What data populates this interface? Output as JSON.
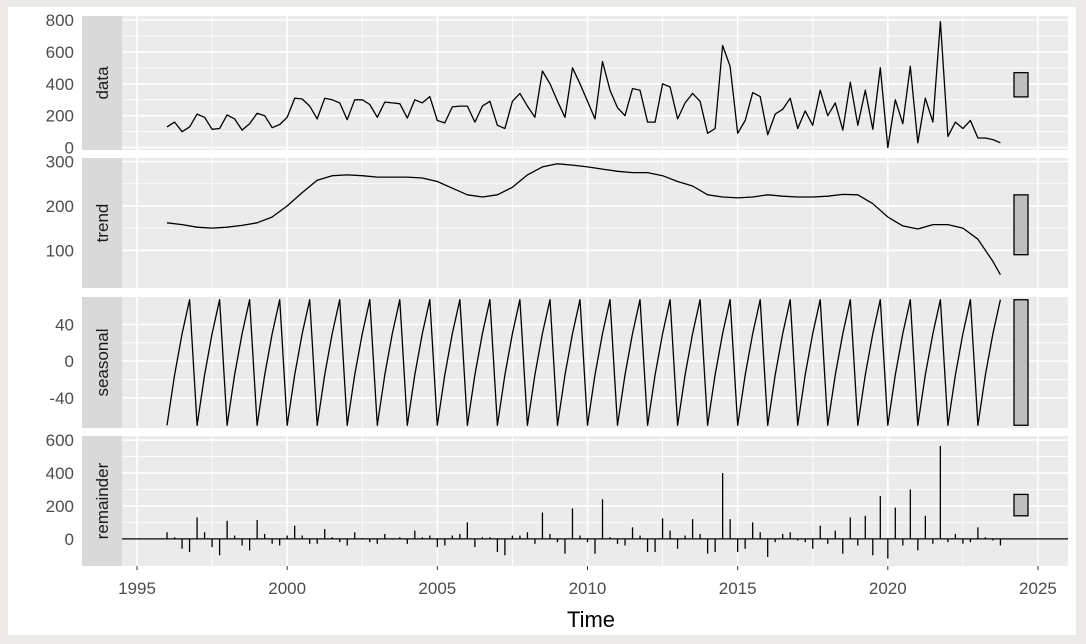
{
  "chart_data": {
    "type": "line",
    "xlabel": "Time",
    "xlim": [
      1994.5,
      2026.0
    ],
    "x_ticks": [
      "1995",
      "2000",
      "2005",
      "2010",
      "2015",
      "2020",
      "2025"
    ],
    "colors": {
      "panel_bg": "#ebebeb",
      "strip_bg": "#d9d9d9",
      "grid": "#ffffff",
      "line": "#000000",
      "bar_fill": "#bebebe"
    },
    "panels": [
      {
        "name": "data",
        "ylim": [
          -15,
          825
        ],
        "y_ticks": [
          "0",
          "200",
          "400",
          "600",
          "800"
        ],
        "y_tick_values": [
          0,
          200,
          400,
          600,
          800
        ],
        "range_bar": [
          318,
          470
        ],
        "x": [
          1996.0,
          1996.25,
          1996.5,
          1996.75,
          1997.0,
          1997.25,
          1997.5,
          1997.75,
          1998.0,
          1998.25,
          1998.5,
          1998.75,
          1999.0,
          1999.25,
          1999.5,
          1999.75,
          2000.0,
          2000.25,
          2000.5,
          2000.75,
          2001.0,
          2001.25,
          2001.5,
          2001.75,
          2002.0,
          2002.25,
          2002.5,
          2002.75,
          2003.0,
          2003.25,
          2003.5,
          2003.75,
          2004.0,
          2004.25,
          2004.5,
          2004.75,
          2005.0,
          2005.25,
          2005.5,
          2005.75,
          2006.0,
          2006.25,
          2006.5,
          2006.75,
          2007.0,
          2007.25,
          2007.5,
          2007.75,
          2008.0,
          2008.25,
          2008.5,
          2008.75,
          2009.0,
          2009.25,
          2009.5,
          2009.75,
          2010.0,
          2010.25,
          2010.5,
          2010.75,
          2011.0,
          2011.25,
          2011.5,
          2011.75,
          2012.0,
          2012.25,
          2012.5,
          2012.75,
          2013.0,
          2013.25,
          2013.5,
          2013.75,
          2014.0,
          2014.25,
          2014.5,
          2014.75,
          2015.0,
          2015.25,
          2015.5,
          2015.75,
          2016.0,
          2016.25,
          2016.5,
          2016.75,
          2017.0,
          2017.25,
          2017.5,
          2017.75,
          2018.0,
          2018.25,
          2018.5,
          2018.75,
          2019.0,
          2019.25,
          2019.5,
          2019.75,
          2020.0,
          2020.25,
          2020.5,
          2020.75,
          2021.0,
          2021.25,
          2021.5,
          2021.75,
          2022.0,
          2022.25,
          2022.5,
          2022.75,
          2023.0,
          2023.25,
          2023.5,
          2023.75
        ],
        "values": [
          130,
          160,
          100,
          130,
          210,
          190,
          115,
          120,
          205,
          180,
          110,
          150,
          215,
          200,
          125,
          145,
          190,
          310,
          305,
          260,
          180,
          310,
          300,
          280,
          175,
          300,
          300,
          270,
          190,
          285,
          280,
          275,
          185,
          300,
          280,
          320,
          170,
          155,
          255,
          260,
          260,
          160,
          260,
          290,
          140,
          120,
          290,
          340,
          260,
          190,
          480,
          400,
          290,
          190,
          500,
          400,
          290,
          180,
          540,
          360,
          250,
          200,
          370,
          360,
          160,
          160,
          400,
          380,
          180,
          280,
          340,
          290,
          90,
          120,
          640,
          510,
          90,
          170,
          345,
          320,
          80,
          210,
          240,
          310,
          120,
          230,
          140,
          360,
          200,
          280,
          110,
          410,
          140,
          360,
          115,
          500,
          0,
          300,
          150,
          510,
          30,
          310,
          160,
          790,
          70,
          160,
          120,
          170,
          60,
          60,
          50,
          30
        ]
      },
      {
        "name": "trend",
        "ylim": [
          15,
          308
        ],
        "y_ticks": [
          "100",
          "200",
          "300"
        ],
        "y_tick_values": [
          100,
          200,
          300
        ],
        "range_bar": [
          90,
          225
        ],
        "x": [
          1996.0,
          1996.5,
          1997.0,
          1997.5,
          1998.0,
          1998.5,
          1999.0,
          1999.5,
          2000.0,
          2000.5,
          2001.0,
          2001.5,
          2002.0,
          2002.5,
          2003.0,
          2003.5,
          2004.0,
          2004.5,
          2005.0,
          2005.5,
          2006.0,
          2006.5,
          2007.0,
          2007.5,
          2008.0,
          2008.5,
          2009.0,
          2009.5,
          2010.0,
          2010.5,
          2011.0,
          2011.5,
          2012.0,
          2012.5,
          2013.0,
          2013.5,
          2014.0,
          2014.5,
          2015.0,
          2015.5,
          2016.0,
          2016.5,
          2017.0,
          2017.5,
          2018.0,
          2018.5,
          2019.0,
          2019.5,
          2020.0,
          2020.5,
          2021.0,
          2021.5,
          2022.0,
          2022.5,
          2023.0,
          2023.5,
          2023.75
        ],
        "values": [
          162,
          158,
          152,
          150,
          152,
          156,
          162,
          175,
          200,
          230,
          258,
          268,
          270,
          268,
          265,
          265,
          265,
          263,
          255,
          240,
          225,
          220,
          225,
          242,
          270,
          288,
          295,
          292,
          288,
          283,
          278,
          275,
          275,
          268,
          255,
          245,
          225,
          220,
          218,
          220,
          225,
          222,
          220,
          220,
          222,
          226,
          225,
          205,
          175,
          155,
          148,
          158,
          158,
          150,
          125,
          75,
          45
        ]
      },
      {
        "name": "seasonal",
        "ylim": [
          -73,
          70
        ],
        "y_ticks": [
          "40",
          "0",
          "-40"
        ],
        "y_tick_values": [
          40,
          0,
          -40
        ],
        "range_bar": [
          -70,
          67
        ],
        "pattern": [
          -70,
          -15,
          30,
          67
        ],
        "start_year": 1996.0,
        "end_year": 2023.75,
        "step": 0.25
      },
      {
        "name": "remainder",
        "ylim": [
          -165,
          625
        ],
        "y_ticks": [
          "0",
          "200",
          "400",
          "600"
        ],
        "y_tick_values": [
          0,
          200,
          400,
          600
        ],
        "range_bar": [
          140,
          270
        ],
        "x": [
          1996.0,
          1996.25,
          1996.5,
          1996.75,
          1997.0,
          1997.25,
          1997.5,
          1997.75,
          1998.0,
          1998.25,
          1998.5,
          1998.75,
          1999.0,
          1999.25,
          1999.5,
          1999.75,
          2000.0,
          2000.25,
          2000.5,
          2000.75,
          2001.0,
          2001.25,
          2001.5,
          2001.75,
          2002.0,
          2002.25,
          2002.5,
          2002.75,
          2003.0,
          2003.25,
          2003.5,
          2003.75,
          2004.0,
          2004.25,
          2004.5,
          2004.75,
          2005.0,
          2005.25,
          2005.5,
          2005.75,
          2006.0,
          2006.25,
          2006.5,
          2006.75,
          2007.0,
          2007.25,
          2007.5,
          2007.75,
          2008.0,
          2008.25,
          2008.5,
          2008.75,
          2009.0,
          2009.25,
          2009.5,
          2009.75,
          2010.0,
          2010.25,
          2010.5,
          2010.75,
          2011.0,
          2011.25,
          2011.5,
          2011.75,
          2012.0,
          2012.25,
          2012.5,
          2012.75,
          2013.0,
          2013.25,
          2013.5,
          2013.75,
          2014.0,
          2014.25,
          2014.5,
          2014.75,
          2015.0,
          2015.25,
          2015.5,
          2015.75,
          2016.0,
          2016.25,
          2016.5,
          2016.75,
          2017.0,
          2017.25,
          2017.5,
          2017.75,
          2018.0,
          2018.25,
          2018.5,
          2018.75,
          2019.0,
          2019.25,
          2019.5,
          2019.75,
          2020.0,
          2020.25,
          2020.5,
          2020.75,
          2021.0,
          2021.25,
          2021.5,
          2021.75,
          2022.0,
          2022.25,
          2022.5,
          2022.75,
          2023.0,
          2023.25,
          2023.5,
          2023.75
        ],
        "values": [
          40,
          10,
          -60,
          -80,
          130,
          40,
          -50,
          -100,
          110,
          20,
          -40,
          -70,
          115,
          30,
          -30,
          -40,
          20,
          80,
          20,
          -30,
          -30,
          60,
          10,
          -20,
          -40,
          40,
          5,
          -20,
          -30,
          30,
          -5,
          10,
          -30,
          50,
          10,
          20,
          -50,
          -40,
          20,
          30,
          100,
          -50,
          10,
          10,
          -80,
          -100,
          20,
          20,
          40,
          -30,
          160,
          30,
          -20,
          -90,
          185,
          20,
          -20,
          -90,
          240,
          10,
          -30,
          -40,
          70,
          20,
          -80,
          -80,
          125,
          50,
          -60,
          20,
          120,
          30,
          -90,
          -80,
          400,
          120,
          -80,
          -60,
          100,
          40,
          -110,
          -20,
          30,
          40,
          -10,
          -20,
          -60,
          80,
          -30,
          50,
          -90,
          130,
          -40,
          140,
          -100,
          260,
          -120,
          190,
          -40,
          300,
          -70,
          140,
          -30,
          565,
          -20,
          30,
          -30,
          -20,
          70,
          10,
          -10,
          -40
        ]
      }
    ]
  }
}
